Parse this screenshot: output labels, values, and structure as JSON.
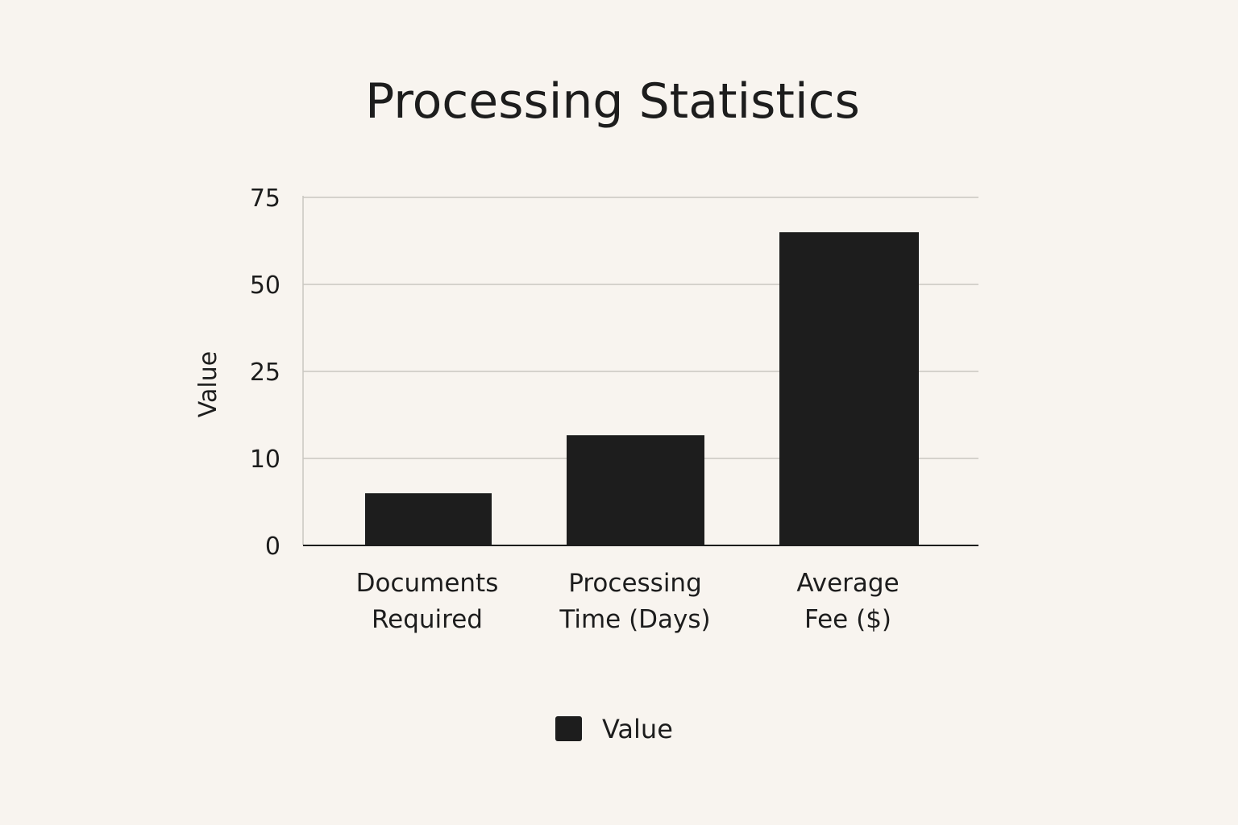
{
  "colors": {
    "background": "#f8f4ef",
    "bar": "#1d1d1d",
    "grid": "#c9c6c1",
    "axis": "#1d1d1d",
    "text": "#1d1d1d"
  },
  "chart_data": {
    "type": "bar",
    "title": "Processing Statistics",
    "xlabel": "",
    "ylabel": "Value",
    "categories": [
      [
        "Documents",
        "Required"
      ],
      [
        "Processing",
        "Time (Days)"
      ],
      [
        "Average",
        "Fee ($)"
      ]
    ],
    "series": [
      {
        "name": "Value",
        "values": [
          6,
          14,
          65
        ]
      }
    ],
    "y_ticks": [
      "0",
      "10",
      "25",
      "50",
      "75"
    ],
    "grid": true,
    "legend": "bottom-center"
  }
}
